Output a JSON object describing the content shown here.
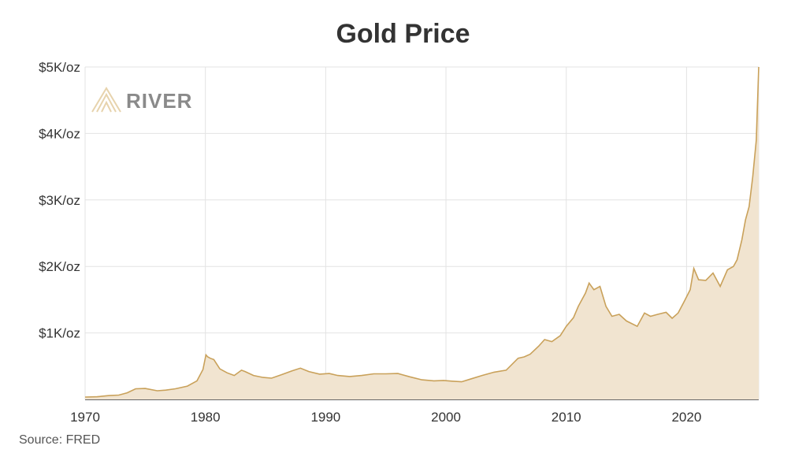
{
  "chart_data": {
    "type": "area",
    "title": "Gold Price",
    "source": "Source: FRED",
    "brand": "RIVER",
    "unit": "USD per troy ounce",
    "xlim": [
      1970,
      2026
    ],
    "ylim": [
      0,
      5000
    ],
    "grid": true,
    "x_ticks": [
      1970,
      1980,
      1990,
      2000,
      2010,
      2020
    ],
    "x_tick_labels": [
      "1970",
      "1980",
      "1990",
      "2000",
      "2010",
      "2020"
    ],
    "y_ticks": [
      1000,
      2000,
      3000,
      4000,
      5000
    ],
    "y_tick_labels": [
      "$1K/oz",
      "$2K/oz",
      "$3K/oz",
      "$4K/oz",
      "$5K/oz"
    ],
    "colors": {
      "line": "#c9a15a",
      "fill": "#f1e4d0",
      "grid": "#e3e3e3",
      "axis": "#333333",
      "brand": "#8a8a8a"
    },
    "x": [
      1970,
      1971,
      1972,
      1972.8,
      1973.5,
      1974.2,
      1975,
      1976,
      1976.7,
      1977.5,
      1978.5,
      1979.3,
      1979.8,
      1980.05,
      1980.2,
      1980.4,
      1980.7,
      1981.2,
      1981.8,
      1982.4,
      1983.0,
      1983.3,
      1984,
      1984.8,
      1985.5,
      1986.3,
      1987.2,
      1987.9,
      1988.6,
      1989.5,
      1990.3,
      1991,
      1992,
      1993,
      1994,
      1995,
      1996,
      1997,
      1998,
      1999,
      1999.8,
      2000.5,
      2001.3,
      2002,
      2003,
      2004,
      2005,
      2006,
      2006.5,
      2007,
      2007.7,
      2008.2,
      2008.8,
      2009.5,
      2010,
      2010.6,
      2011,
      2011.6,
      2011.9,
      2012.3,
      2012.8,
      2013.3,
      2013.8,
      2014.4,
      2015,
      2015.9,
      2016.5,
      2017,
      2017.6,
      2018.3,
      2018.8,
      2019.3,
      2019.8,
      2020.3,
      2020.6,
      2021,
      2021.6,
      2022.2,
      2022.8,
      2023.4,
      2023.9,
      2024.2,
      2024.6,
      2024.9,
      2025.2,
      2025.5,
      2025.8,
      2026
    ],
    "y": [
      35,
      40,
      58,
      65,
      100,
      160,
      165,
      130,
      140,
      160,
      200,
      280,
      450,
      670,
      640,
      620,
      600,
      460,
      400,
      360,
      440,
      420,
      360,
      330,
      320,
      370,
      430,
      470,
      420,
      380,
      390,
      360,
      345,
      360,
      385,
      385,
      390,
      340,
      295,
      280,
      285,
      275,
      265,
      305,
      360,
      410,
      440,
      620,
      640,
      680,
      800,
      900,
      870,
      960,
      1100,
      1230,
      1400,
      1600,
      1750,
      1650,
      1700,
      1400,
      1250,
      1280,
      1180,
      1100,
      1300,
      1250,
      1280,
      1310,
      1220,
      1300,
      1470,
      1650,
      1970,
      1800,
      1790,
      1900,
      1700,
      1950,
      2000,
      2100,
      2400,
      2700,
      2900,
      3350,
      3900,
      5000
    ]
  }
}
